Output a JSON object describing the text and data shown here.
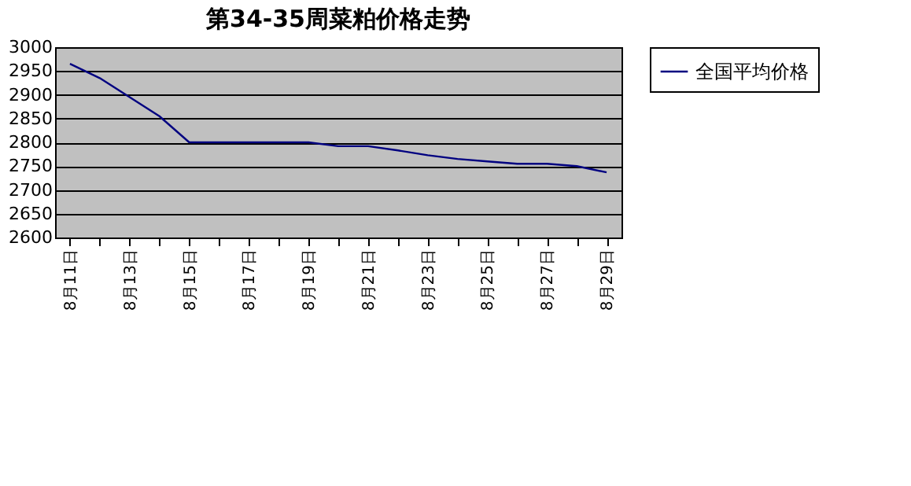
{
  "chart_data": {
    "type": "line",
    "title": "第34-35周菜粕价格走势",
    "categories": [
      "8月11日",
      null,
      "8月13日",
      null,
      "8月15日",
      null,
      "8月17日",
      null,
      "8月19日",
      null,
      "8月21日",
      null,
      "8月23日",
      null,
      "8月25日",
      null,
      "8月27日",
      null,
      "8月29日"
    ],
    "series": [
      {
        "name": "全国平均价格",
        "color": "#000080",
        "values": [
          2965,
          2935,
          2895,
          2855,
          2800,
          2800,
          2800,
          2800,
          2800,
          2792,
          2792,
          2783,
          2773,
          2765,
          2760,
          2755,
          2755,
          2750,
          2737
        ]
      }
    ],
    "ylim": [
      2600,
      3000
    ],
    "yticks": [
      2600,
      2650,
      2700,
      2750,
      2800,
      2850,
      2900,
      2950,
      3000
    ],
    "grid": "y",
    "legend": "right",
    "marker": "none",
    "line_style": "solid"
  }
}
